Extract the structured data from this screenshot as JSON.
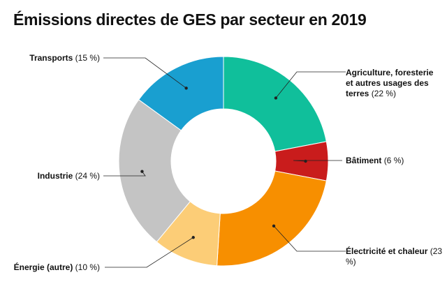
{
  "chart_data": {
    "type": "pie",
    "title": "Émissions directes de GES par secteur en 2019",
    "donut": true,
    "slices": [
      {
        "label": "Agriculture, foresterie et autres usages des terres",
        "pct_text": "(22 %)",
        "value": 22,
        "color": "#10bf9b"
      },
      {
        "label": "Bâtiment",
        "pct_text": "(6 %)",
        "value": 6,
        "color": "#c91c1c"
      },
      {
        "label": "Électricité et chaleur",
        "pct_text": "(23 %)",
        "value": 23,
        "color": "#f78f00"
      },
      {
        "label": "Énergie (autre)",
        "pct_text": "(10 %)",
        "value": 10,
        "color": "#fccd77"
      },
      {
        "label": "Industrie",
        "pct_text": "(24 %)",
        "value": 24,
        "color": "#c4c4c4"
      },
      {
        "label": "Transports",
        "pct_text": "(15 %)",
        "value": 15,
        "color": "#199fd0"
      }
    ]
  }
}
